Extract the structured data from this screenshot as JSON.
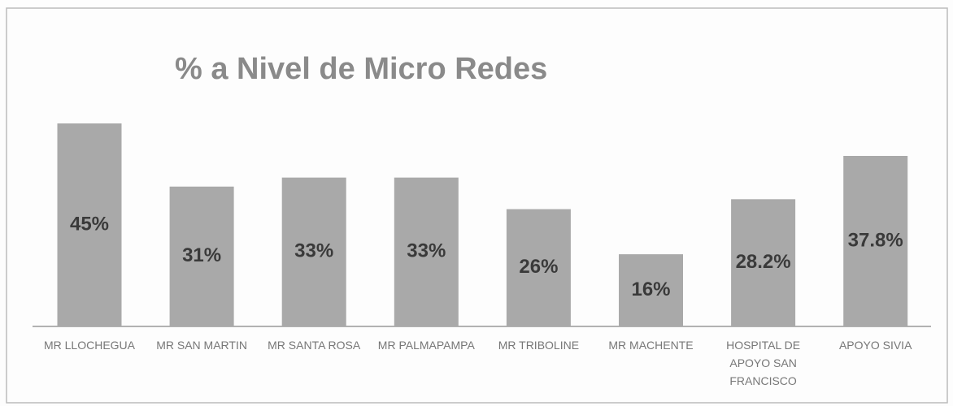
{
  "chart_data": {
    "type": "bar",
    "title": "% a Nivel de Micro Redes",
    "categories": [
      "MR LLOCHEGUA",
      "MR SAN MARTIN",
      "MR SANTA ROSA",
      "MR PALMAPAMPA",
      "MR TRIBOLINE",
      "MR MACHENTE",
      "HOSPITAL DE APOYO SAN FRANCISCO",
      "APOYO SIVIA"
    ],
    "values": [
      45,
      31,
      33,
      33,
      26,
      16,
      28.2,
      37.8
    ],
    "value_labels": [
      "45%",
      "31%",
      "33%",
      "33%",
      "26%",
      "16%",
      "28.2%",
      "37.8%"
    ],
    "color": "#a9a9a9"
  }
}
